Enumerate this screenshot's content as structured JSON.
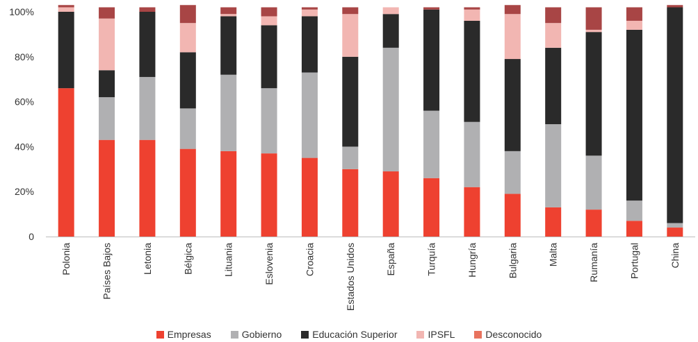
{
  "chart_data": {
    "type": "bar",
    "stacked": true,
    "categories": [
      "Polonia",
      "Países Bajos",
      "Letonia",
      "Bélgica",
      "Lituania",
      "Eslovenia",
      "Croacia",
      "Estados Unidos",
      "España",
      "Turquía",
      "Hungría",
      "Bulgaria",
      "Malta",
      "Rumanía",
      "Portugal",
      "China"
    ],
    "series": [
      {
        "name": "Empresas",
        "color": "#ee4130",
        "values": [
          66,
          43,
          43,
          39,
          38,
          37,
          35,
          30,
          29,
          26,
          22,
          19,
          13,
          12,
          7,
          4
        ]
      },
      {
        "name": "Gobierno",
        "color": "#b0b0b2",
        "values": [
          0,
          19,
          28,
          18,
          34,
          29,
          38,
          10,
          55,
          30,
          29,
          19,
          37,
          24,
          9,
          2
        ]
      },
      {
        "name": "Educación Superior",
        "color": "#2a2a2a",
        "values": [
          34,
          12,
          29,
          25,
          26,
          28,
          25,
          40,
          15,
          45,
          45,
          41,
          34,
          55,
          76,
          96
        ]
      },
      {
        "name": "IPSFL",
        "color": "#f2b6b2",
        "values": [
          2,
          23,
          0,
          13,
          1,
          4,
          3,
          19,
          3,
          0,
          5,
          20,
          11,
          1,
          4,
          0
        ]
      },
      {
        "name": "Desconocido",
        "color": "#a84545",
        "values": [
          1,
          5,
          2,
          8,
          3,
          4,
          1,
          3,
          0,
          1,
          1,
          4,
          7,
          10,
          6,
          1
        ]
      }
    ],
    "ylim": [
      0,
      100
    ],
    "yticks": [
      "0",
      "20%",
      "40%",
      "60%",
      "80%",
      "100%"
    ],
    "ytick_values": [
      0,
      20,
      40,
      60,
      80,
      100
    ],
    "legend_position": "bottom",
    "grid": false
  }
}
